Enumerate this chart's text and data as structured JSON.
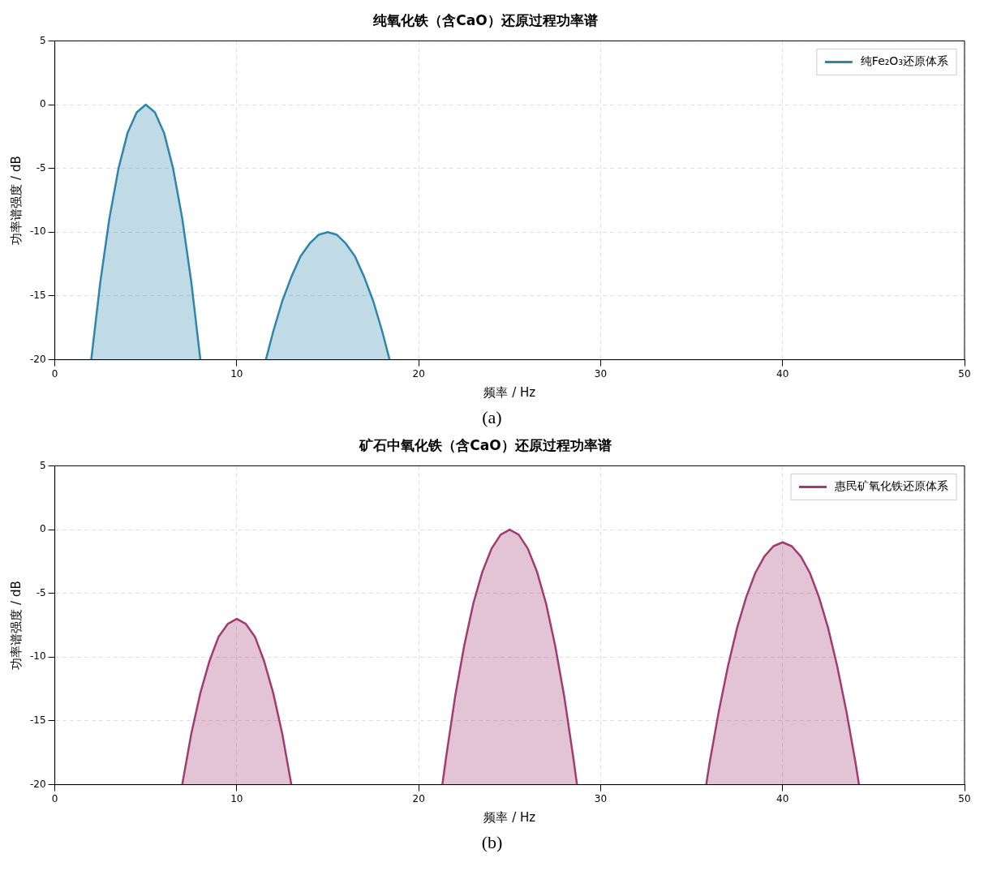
{
  "chart_data": [
    {
      "type": "area",
      "title": "纯氧化铁（含CaO）还原过程功率谱",
      "xlabel": "频率 / Hz",
      "ylabel": "功率谱强度 / dB",
      "annotations": [
        "(a)"
      ],
      "xlim": [
        0,
        50
      ],
      "xticks": [
        0,
        10,
        20,
        30,
        40,
        50
      ],
      "ylim": [
        -20,
        5
      ],
      "yticks": [
        -20,
        -15,
        -10,
        -5,
        0,
        5
      ],
      "grid": true,
      "legend": "top right",
      "marker": "none",
      "line_style": "solid",
      "series": [
        {
          "name": "纯Fe₂O₃还原体系",
          "color": "#2e86ab",
          "x": [
            2,
            2.5,
            3,
            3.5,
            4,
            4.5,
            5,
            5.5,
            6,
            6.5,
            7,
            7.5,
            8,
            10,
            11.6,
            12,
            12.5,
            13,
            13.5,
            14,
            14.5,
            15,
            15.5,
            16,
            16.5,
            17,
            17.5,
            18,
            18.4
          ],
          "values": [
            -20,
            -13.9,
            -8.9,
            -5,
            -2.2,
            -0.6,
            0,
            -0.6,
            -2.2,
            -5,
            -8.9,
            -13.9,
            -20,
            null,
            -20,
            -17.8,
            -15.4,
            -13.5,
            -11.9,
            -10.9,
            -10.2,
            -10,
            -10.2,
            -10.9,
            -11.9,
            -13.5,
            -15.4,
            -17.8,
            -20
          ]
        }
      ]
    },
    {
      "type": "area",
      "title": "矿石中氧化铁（含CaO）还原过程功率谱",
      "xlabel": "频率 / Hz",
      "ylabel": "功率谱强度 / dB",
      "annotations": [
        "(b)"
      ],
      "xlim": [
        0,
        50
      ],
      "xticks": [
        0,
        10,
        20,
        30,
        40,
        50
      ],
      "ylim": [
        -20,
        5
      ],
      "yticks": [
        -20,
        -15,
        -10,
        -5,
        0,
        5
      ],
      "grid": true,
      "legend": "top right",
      "marker": "none",
      "line_style": "solid",
      "series": [
        {
          "name": "惠民矿氧化铁还原体系",
          "color": "#a23b72",
          "x": [
            7,
            7.5,
            8,
            8.5,
            9,
            9.5,
            10,
            10.5,
            11,
            11.5,
            12,
            12.5,
            13,
            17,
            21.3,
            21.5,
            22,
            22.5,
            23,
            23.5,
            24,
            24.5,
            25,
            25.5,
            26,
            26.5,
            27,
            27.5,
            28,
            28.5,
            28.7,
            32,
            35.8,
            36,
            36.5,
            37,
            37.5,
            38,
            38.5,
            39,
            39.5,
            40,
            40.5,
            41,
            41.5,
            42,
            42.5,
            43,
            43.5,
            44,
            44.2
          ],
          "values": [
            -20,
            -16,
            -12.8,
            -10.3,
            -8.4,
            -7.4,
            -7,
            -7.4,
            -8.4,
            -10.3,
            -12.8,
            -16,
            -20,
            null,
            -20,
            -17.9,
            -13.1,
            -9.1,
            -5.8,
            -3.3,
            -1.5,
            -0.4,
            0,
            -0.4,
            -1.5,
            -3.3,
            -5.8,
            -9.1,
            -13.1,
            -17.9,
            -20,
            null,
            -20,
            -18.2,
            -14.2,
            -10.7,
            -7.7,
            -5.3,
            -3.4,
            -2.1,
            -1.3,
            -1,
            -1.3,
            -2.1,
            -3.4,
            -5.3,
            -7.7,
            -10.7,
            -14.2,
            -18.2,
            -20
          ]
        }
      ]
    }
  ]
}
